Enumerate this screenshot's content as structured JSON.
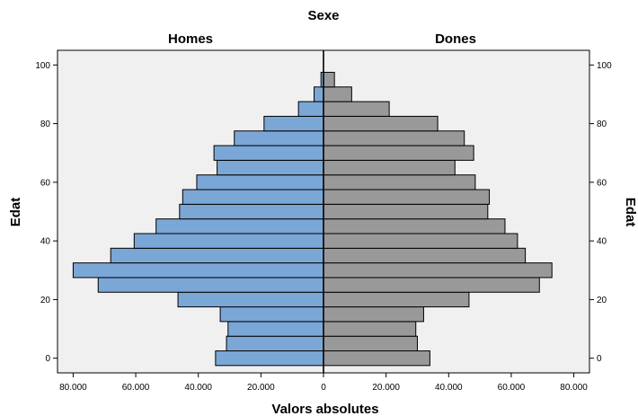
{
  "chart_data": {
    "type": "bar",
    "orientation": "horizontal-population-pyramid",
    "title": "Sexe",
    "xlabel": "Valors absolutes",
    "ylabel": "Edat",
    "ylabel_right": "Edat",
    "x_ticks": [
      "80.000",
      "60.000",
      "40.000",
      "20.000",
      "0",
      "20.000",
      "40.000",
      "60.000",
      "80.000"
    ],
    "y_ticks": [
      0,
      20,
      40,
      60,
      80,
      100
    ],
    "xlim": [
      -85000,
      85000
    ],
    "ylim": [
      -5,
      105
    ],
    "age_bin_width": 5,
    "categories": [
      0,
      5,
      10,
      15,
      20,
      25,
      30,
      35,
      40,
      45,
      50,
      55,
      60,
      65,
      70,
      75,
      80,
      85,
      90,
      95
    ],
    "series": [
      {
        "name": "Homes",
        "color": "#7ba7d7",
        "values": [
          34500,
          31000,
          30500,
          33000,
          46500,
          72000,
          80000,
          68000,
          60500,
          53500,
          46000,
          45000,
          40500,
          34000,
          35000,
          28500,
          19000,
          8000,
          3000,
          800
        ]
      },
      {
        "name": "Dones",
        "color": "#999999",
        "values": [
          34000,
          30000,
          29500,
          32000,
          46500,
          69000,
          73000,
          64500,
          62000,
          58000,
          52500,
          53000,
          48500,
          42000,
          48000,
          45000,
          36500,
          21000,
          9000,
          3500
        ]
      }
    ],
    "grid": false,
    "plot_background": "#f0f0f0"
  }
}
